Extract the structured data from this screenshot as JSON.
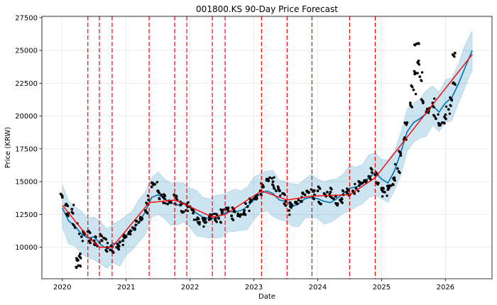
{
  "chart_data": {
    "type": "line",
    "title": "001800.KS 90-Day Price Forecast",
    "xlabel": "Date",
    "ylabel": "Price (KRW)",
    "xlim": [
      2019.68,
      2026.73
    ],
    "ylim": [
      7600,
      27600
    ],
    "x_ticks": [
      {
        "value": 2020,
        "label": "2020"
      },
      {
        "value": 2021,
        "label": "2021"
      },
      {
        "value": 2022,
        "label": "2022"
      },
      {
        "value": 2023,
        "label": "2023"
      },
      {
        "value": 2024,
        "label": "2024"
      },
      {
        "value": 2025,
        "label": "2025"
      },
      {
        "value": 2026,
        "label": "2026"
      }
    ],
    "y_ticks": [
      {
        "value": 10000,
        "label": "10000"
      },
      {
        "value": 12500,
        "label": "12500"
      },
      {
        "value": 15000,
        "label": "15000"
      },
      {
        "value": 17500,
        "label": "17500"
      },
      {
        "value": 20000,
        "label": "20000"
      },
      {
        "value": 22500,
        "label": "22500"
      },
      {
        "value": 25000,
        "label": "25000"
      },
      {
        "value": 27500,
        "label": "27500"
      }
    ],
    "grid": true,
    "colors": {
      "observed": "#000000",
      "forecast": "#0072B2",
      "interval": "#0072B2",
      "trend": "#ff0000",
      "changepoint": "#ff0000"
    },
    "changepoints": [
      2020.4,
      2020.58,
      2020.78,
      2021.36,
      2021.76,
      2021.95,
      2022.35,
      2022.55,
      2023.12,
      2023.52,
      2023.91,
      2024.5,
      2024.9
    ],
    "trend": {
      "x": [
        2020.0,
        2020.4,
        2020.58,
        2020.78,
        2021.36,
        2021.76,
        2021.95,
        2022.35,
        2022.55,
        2023.12,
        2023.52,
        2023.91,
        2024.5,
        2024.9,
        2026.42
      ],
      "y": [
        13200,
        10800,
        10000,
        10000,
        13400,
        13600,
        13200,
        12300,
        12500,
        14300,
        13600,
        13900,
        14000,
        15300,
        24700
      ]
    },
    "forecast": {
      "x": [
        2020.0,
        2020.1,
        2020.2,
        2020.3,
        2020.4,
        2020.5,
        2020.6,
        2020.7,
        2020.8,
        2020.9,
        2021.0,
        2021.1,
        2021.2,
        2021.3,
        2021.4,
        2021.5,
        2021.6,
        2021.7,
        2021.8,
        2021.9,
        2022.0,
        2022.1,
        2022.2,
        2022.3,
        2022.4,
        2022.5,
        2022.6,
        2022.7,
        2022.8,
        2022.9,
        2023.0,
        2023.1,
        2023.2,
        2023.3,
        2023.4,
        2023.5,
        2023.6,
        2023.7,
        2023.8,
        2023.9,
        2024.0,
        2024.1,
        2024.2,
        2024.3,
        2024.4,
        2024.5,
        2024.6,
        2024.7,
        2024.8,
        2024.9,
        2025.0,
        2025.1,
        2025.2,
        2025.3,
        2025.4,
        2025.5,
        2025.6,
        2025.7,
        2025.8,
        2025.9,
        2026.0,
        2026.1,
        2026.2,
        2026.3,
        2026.42
      ],
      "y": [
        13000,
        12000,
        11600,
        11000,
        10700,
        10800,
        10200,
        9900,
        10300,
        10300,
        10900,
        11300,
        11900,
        12700,
        13800,
        14000,
        13700,
        13400,
        13200,
        13400,
        13000,
        12600,
        12300,
        12200,
        12200,
        12500,
        12700,
        12700,
        12800,
        13100,
        13600,
        14100,
        14300,
        14100,
        13600,
        13500,
        13100,
        13300,
        13700,
        13800,
        13700,
        13500,
        13400,
        13700,
        14100,
        14500,
        14600,
        14800,
        15300,
        15700,
        15200,
        14900,
        15800,
        17200,
        18800,
        19500,
        19800,
        20200,
        20800,
        20300,
        21000,
        21400,
        22400,
        23600,
        25000
      ]
    },
    "interval_halfwidth": 1500,
    "observed": {
      "x": [
        2020.0,
        2020.05,
        2020.1,
        2020.15,
        2020.2,
        2020.23,
        2020.25,
        2020.28,
        2020.3,
        2020.35,
        2020.4,
        2020.45,
        2020.5,
        2020.55,
        2020.6,
        2020.65,
        2020.7,
        2020.75,
        2020.8,
        2020.85,
        2020.9,
        2020.95,
        2021.0,
        2021.05,
        2021.1,
        2021.15,
        2021.2,
        2021.25,
        2021.3,
        2021.35,
        2021.4,
        2021.45,
        2021.5,
        2021.55,
        2021.6,
        2021.65,
        2021.7,
        2021.75,
        2021.8,
        2021.85,
        2021.9,
        2021.95,
        2022.0,
        2022.05,
        2022.1,
        2022.15,
        2022.2,
        2022.25,
        2022.3,
        2022.35,
        2022.4,
        2022.45,
        2022.5,
        2022.55,
        2022.6,
        2022.65,
        2022.7,
        2022.75,
        2022.8,
        2022.85,
        2022.9,
        2022.95,
        2023.0,
        2023.05,
        2023.1,
        2023.15,
        2023.2,
        2023.25,
        2023.3,
        2023.35,
        2023.4,
        2023.45,
        2023.5,
        2023.55,
        2023.6,
        2023.65,
        2023.7,
        2023.75,
        2023.8,
        2023.85,
        2023.9,
        2023.95,
        2024.0,
        2024.05,
        2024.1,
        2024.15,
        2024.2,
        2024.25,
        2024.3,
        2024.35,
        2024.4,
        2024.45,
        2024.5,
        2024.55,
        2024.6,
        2024.65,
        2024.7,
        2024.75,
        2024.8,
        2024.85,
        2024.9,
        2024.95,
        2025.0,
        2025.05,
        2025.1,
        2025.15,
        2025.2,
        2025.25,
        2025.3,
        2025.35,
        2025.4,
        2025.45,
        2025.5,
        2025.52,
        2025.55,
        2025.58,
        2025.6,
        2025.65,
        2025.7,
        2025.75,
        2025.8,
        2025.85,
        2025.9,
        2025.95,
        2026.0,
        2026.05,
        2026.1,
        2026.12,
        2026.15
      ],
      "y": [
        13800,
        13200,
        12600,
        12900,
        11500,
        9000,
        8600,
        9500,
        10800,
        11000,
        11200,
        10600,
        10500,
        10100,
        10900,
        10700,
        10000,
        9800,
        9600,
        10000,
        10400,
        10500,
        10800,
        11100,
        11500,
        11700,
        11900,
        12200,
        12800,
        13600,
        14600,
        14800,
        14300,
        14000,
        13700,
        13300,
        13500,
        14000,
        13600,
        13200,
        12700,
        13300,
        13100,
        12600,
        12100,
        11900,
        12200,
        11900,
        12100,
        12500,
        12200,
        12200,
        12600,
        12900,
        13000,
        12400,
        12700,
        12400,
        12500,
        12800,
        13100,
        13500,
        13700,
        14000,
        14300,
        14600,
        15100,
        15300,
        15000,
        14300,
        14300,
        14100,
        13500,
        12800,
        13200,
        13400,
        13600,
        13800,
        14000,
        14200,
        14400,
        14000,
        14300,
        13300,
        14100,
        14200,
        14200,
        13700,
        13300,
        13600,
        14000,
        14200,
        14000,
        14300,
        14500,
        14700,
        14900,
        15100,
        15400,
        15700,
        15500,
        14900,
        14500,
        14200,
        14400,
        14700,
        15300,
        16000,
        17000,
        18200,
        19500,
        21000,
        22000,
        23200,
        25500,
        24200,
        23000,
        21000,
        20300,
        20600,
        21000,
        19800,
        19300,
        19500,
        20100,
        20500,
        21200,
        22500,
        24800
      ]
    }
  }
}
